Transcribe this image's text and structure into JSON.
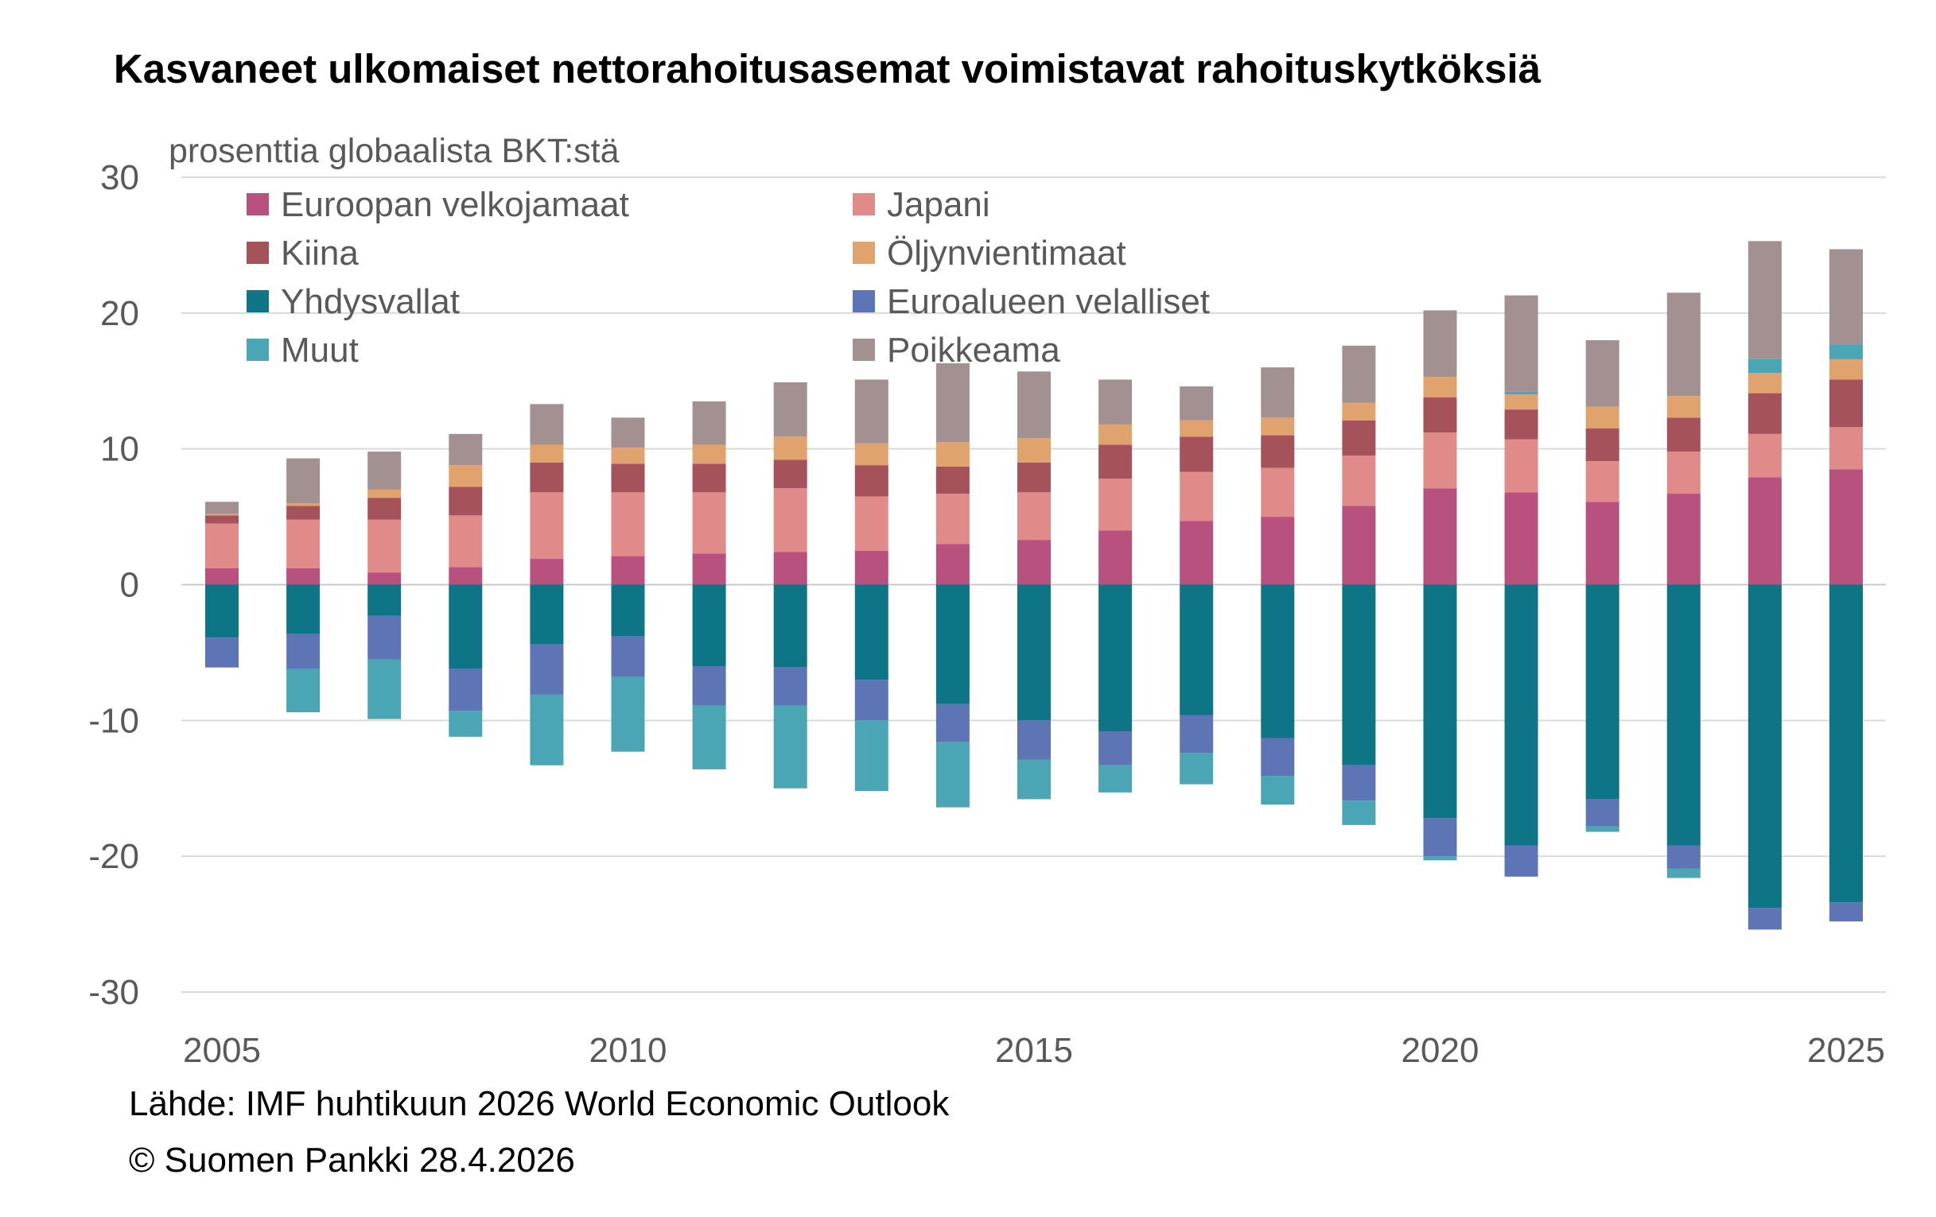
{
  "chart_data": {
    "type": "bar",
    "stacked": true,
    "title": "Kasvaneet ulkomaiset nettorahoitusasemat voimistavat rahoituskytköksiä",
    "ylabel": "prosenttia globaalista BKT:stä",
    "xlabel": "",
    "ylim": [
      -30,
      30
    ],
    "yticks": [
      30,
      20,
      10,
      0,
      -10,
      -20,
      -30
    ],
    "xticks": [
      2005,
      2010,
      2015,
      2020,
      2025
    ],
    "grid": true,
    "legend_placement": "top-left",
    "categories": [
      2005,
      2006,
      2007,
      2008,
      2009,
      2010,
      2011,
      2012,
      2013,
      2014,
      2015,
      2016,
      2017,
      2018,
      2019,
      2020,
      2021,
      2022,
      2023,
      2024,
      2025
    ],
    "series": [
      {
        "name": "Euroopan velkojamaat",
        "color": "#b9517f",
        "values": [
          1.2,
          1.2,
          0.9,
          1.3,
          1.9,
          2.1,
          2.3,
          2.4,
          2.5,
          3.0,
          3.3,
          4.0,
          4.7,
          5.0,
          5.8,
          7.1,
          6.8,
          6.1,
          6.7,
          7.9,
          8.5
        ]
      },
      {
        "name": "Japani",
        "color": "#e08a8a",
        "values": [
          3.3,
          3.6,
          3.9,
          3.8,
          4.9,
          4.7,
          4.5,
          4.7,
          4.0,
          3.7,
          3.5,
          3.8,
          3.6,
          3.6,
          3.7,
          4.1,
          3.9,
          3.0,
          3.1,
          3.2,
          3.1
        ]
      },
      {
        "name": "Kiina",
        "color": "#a5525b",
        "values": [
          0.6,
          1.0,
          1.6,
          2.1,
          2.2,
          2.1,
          2.1,
          2.1,
          2.3,
          2.0,
          2.2,
          2.5,
          2.6,
          2.4,
          2.6,
          2.6,
          2.2,
          2.4,
          2.5,
          3.0,
          3.5
        ]
      },
      {
        "name": "Öljynvientimaat",
        "color": "#e0a36d",
        "values": [
          0.1,
          0.2,
          0.6,
          1.6,
          1.3,
          1.2,
          1.4,
          1.7,
          1.6,
          1.8,
          1.8,
          1.5,
          1.2,
          1.3,
          1.3,
          1.5,
          1.1,
          1.6,
          1.6,
          1.5,
          1.5
        ]
      },
      {
        "name": "Yhdysvallat",
        "color": "#0d7586",
        "values": [
          -3.9,
          -3.6,
          -2.3,
          -6.2,
          -4.4,
          -3.8,
          -6.0,
          -6.1,
          -7.0,
          -8.8,
          -10.0,
          -10.8,
          -9.6,
          -11.3,
          -13.3,
          -17.2,
          -19.2,
          -15.8,
          -19.2,
          -23.8,
          -23.4
        ]
      },
      {
        "name": "Euroalueen velalliset",
        "color": "#5e75b5",
        "values": [
          -2.2,
          -2.6,
          -3.2,
          -3.1,
          -3.7,
          -3.0,
          -2.9,
          -2.8,
          -3.0,
          -2.8,
          -2.9,
          -2.5,
          -2.8,
          -2.8,
          -2.6,
          -2.8,
          -2.3,
          -2.0,
          -1.7,
          -1.6,
          -1.4
        ]
      },
      {
        "name": "Muut",
        "color": "#4aa5b4",
        "values": [
          0,
          -3.2,
          -4.4,
          -1.9,
          -5.2,
          -5.5,
          -4.7,
          -6.1,
          -5.2,
          -4.8,
          -2.9,
          -2.0,
          -2.3,
          -2.1,
          -1.8,
          -0.3,
          0.2,
          -0.4,
          -0.7,
          1.0,
          1.1
        ]
      },
      {
        "name": "Poikkeama",
        "color": "#a39090",
        "values": [
          0.9,
          3.3,
          2.8,
          2.3,
          3.0,
          2.2,
          3.2,
          4.0,
          4.7,
          5.8,
          4.9,
          3.3,
          2.5,
          3.7,
          4.2,
          4.9,
          7.1,
          4.9,
          7.6,
          8.7,
          7.0
        ]
      }
    ]
  },
  "footer": {
    "source": "Lähde: IMF huhtikuun 2026  World Economic Outlook",
    "copyright": "© Suomen Pankki 28.4.2026"
  }
}
